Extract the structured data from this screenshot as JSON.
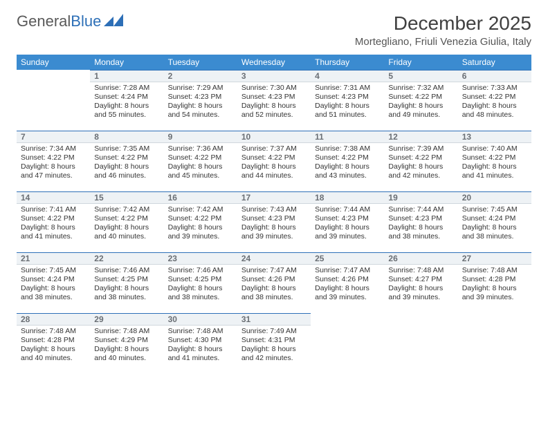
{
  "brand": {
    "part1": "General",
    "part2": "Blue"
  },
  "title": "December 2025",
  "location": "Mortegliano, Friuli Venezia Giulia, Italy",
  "colors": {
    "header_bg": "#3b8bd0",
    "header_fg": "#ffffff",
    "daynum_bg": "#eef2f5",
    "daynum_border_top": "#2d6fb7",
    "brand_gray": "#595959",
    "brand_blue": "#2d6fb7"
  },
  "day_headers": [
    "Sunday",
    "Monday",
    "Tuesday",
    "Wednesday",
    "Thursday",
    "Friday",
    "Saturday"
  ],
  "weeks": [
    [
      null,
      {
        "n": "1",
        "sr": "7:28 AM",
        "ss": "4:24 PM",
        "dl": "8 hours and 55 minutes."
      },
      {
        "n": "2",
        "sr": "7:29 AM",
        "ss": "4:23 PM",
        "dl": "8 hours and 54 minutes."
      },
      {
        "n": "3",
        "sr": "7:30 AM",
        "ss": "4:23 PM",
        "dl": "8 hours and 52 minutes."
      },
      {
        "n": "4",
        "sr": "7:31 AM",
        "ss": "4:23 PM",
        "dl": "8 hours and 51 minutes."
      },
      {
        "n": "5",
        "sr": "7:32 AM",
        "ss": "4:22 PM",
        "dl": "8 hours and 49 minutes."
      },
      {
        "n": "6",
        "sr": "7:33 AM",
        "ss": "4:22 PM",
        "dl": "8 hours and 48 minutes."
      }
    ],
    [
      {
        "n": "7",
        "sr": "7:34 AM",
        "ss": "4:22 PM",
        "dl": "8 hours and 47 minutes."
      },
      {
        "n": "8",
        "sr": "7:35 AM",
        "ss": "4:22 PM",
        "dl": "8 hours and 46 minutes."
      },
      {
        "n": "9",
        "sr": "7:36 AM",
        "ss": "4:22 PM",
        "dl": "8 hours and 45 minutes."
      },
      {
        "n": "10",
        "sr": "7:37 AM",
        "ss": "4:22 PM",
        "dl": "8 hours and 44 minutes."
      },
      {
        "n": "11",
        "sr": "7:38 AM",
        "ss": "4:22 PM",
        "dl": "8 hours and 43 minutes."
      },
      {
        "n": "12",
        "sr": "7:39 AM",
        "ss": "4:22 PM",
        "dl": "8 hours and 42 minutes."
      },
      {
        "n": "13",
        "sr": "7:40 AM",
        "ss": "4:22 PM",
        "dl": "8 hours and 41 minutes."
      }
    ],
    [
      {
        "n": "14",
        "sr": "7:41 AM",
        "ss": "4:22 PM",
        "dl": "8 hours and 41 minutes."
      },
      {
        "n": "15",
        "sr": "7:42 AM",
        "ss": "4:22 PM",
        "dl": "8 hours and 40 minutes."
      },
      {
        "n": "16",
        "sr": "7:42 AM",
        "ss": "4:22 PM",
        "dl": "8 hours and 39 minutes."
      },
      {
        "n": "17",
        "sr": "7:43 AM",
        "ss": "4:23 PM",
        "dl": "8 hours and 39 minutes."
      },
      {
        "n": "18",
        "sr": "7:44 AM",
        "ss": "4:23 PM",
        "dl": "8 hours and 39 minutes."
      },
      {
        "n": "19",
        "sr": "7:44 AM",
        "ss": "4:23 PM",
        "dl": "8 hours and 38 minutes."
      },
      {
        "n": "20",
        "sr": "7:45 AM",
        "ss": "4:24 PM",
        "dl": "8 hours and 38 minutes."
      }
    ],
    [
      {
        "n": "21",
        "sr": "7:45 AM",
        "ss": "4:24 PM",
        "dl": "8 hours and 38 minutes."
      },
      {
        "n": "22",
        "sr": "7:46 AM",
        "ss": "4:25 PM",
        "dl": "8 hours and 38 minutes."
      },
      {
        "n": "23",
        "sr": "7:46 AM",
        "ss": "4:25 PM",
        "dl": "8 hours and 38 minutes."
      },
      {
        "n": "24",
        "sr": "7:47 AM",
        "ss": "4:26 PM",
        "dl": "8 hours and 38 minutes."
      },
      {
        "n": "25",
        "sr": "7:47 AM",
        "ss": "4:26 PM",
        "dl": "8 hours and 39 minutes."
      },
      {
        "n": "26",
        "sr": "7:48 AM",
        "ss": "4:27 PM",
        "dl": "8 hours and 39 minutes."
      },
      {
        "n": "27",
        "sr": "7:48 AM",
        "ss": "4:28 PM",
        "dl": "8 hours and 39 minutes."
      }
    ],
    [
      {
        "n": "28",
        "sr": "7:48 AM",
        "ss": "4:28 PM",
        "dl": "8 hours and 40 minutes."
      },
      {
        "n": "29",
        "sr": "7:48 AM",
        "ss": "4:29 PM",
        "dl": "8 hours and 40 minutes."
      },
      {
        "n": "30",
        "sr": "7:48 AM",
        "ss": "4:30 PM",
        "dl": "8 hours and 41 minutes."
      },
      {
        "n": "31",
        "sr": "7:49 AM",
        "ss": "4:31 PM",
        "dl": "8 hours and 42 minutes."
      },
      null,
      null,
      null
    ]
  ],
  "labels": {
    "sunrise": "Sunrise:",
    "sunset": "Sunset:",
    "daylight": "Daylight:"
  }
}
